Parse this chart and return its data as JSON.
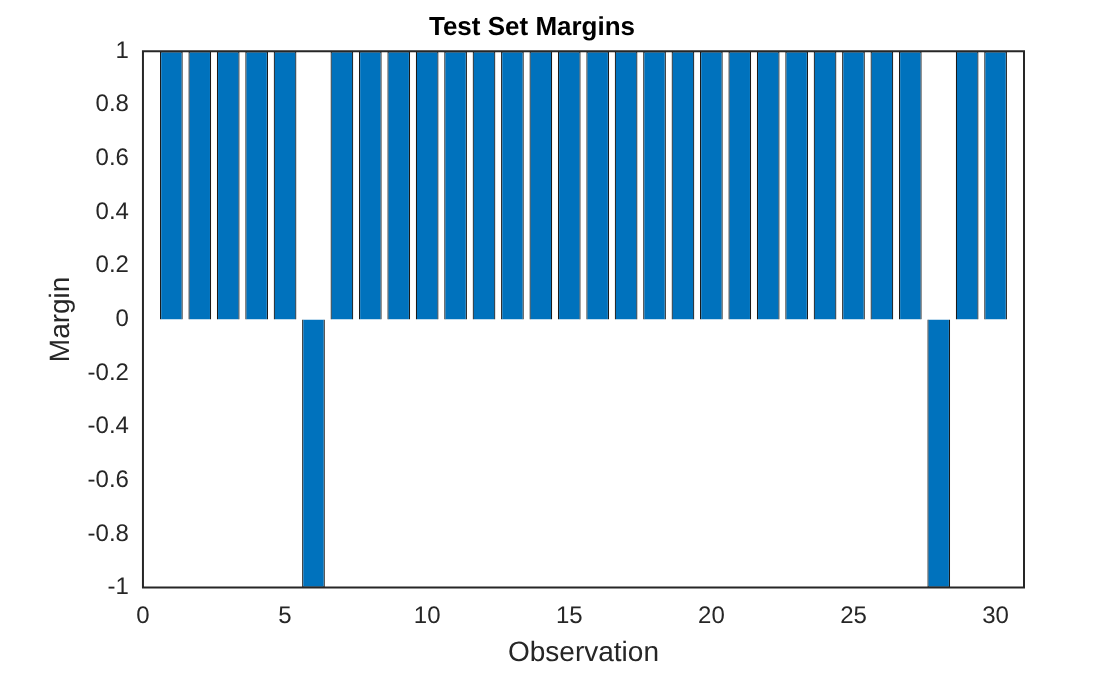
{
  "chart_data": {
    "type": "bar",
    "title": "Test Set Margins",
    "xlabel": "Observation",
    "ylabel": "Margin",
    "x": [
      1,
      2,
      3,
      4,
      5,
      6,
      7,
      8,
      9,
      10,
      11,
      12,
      13,
      14,
      15,
      16,
      17,
      18,
      19,
      20,
      21,
      22,
      23,
      24,
      25,
      26,
      27,
      28,
      29,
      30
    ],
    "values": [
      1,
      1,
      1,
      1,
      1,
      -1,
      1,
      1,
      1,
      1,
      1,
      1,
      1,
      1,
      1,
      1,
      1,
      1,
      1,
      1,
      1,
      1,
      1,
      1,
      1,
      1,
      1,
      -1,
      1,
      1
    ],
    "color": "#0072bd",
    "xlim": [
      0,
      31
    ],
    "xticks": [
      0,
      5,
      10,
      15,
      20,
      25,
      30
    ],
    "ylim": [
      -1,
      1
    ],
    "yticks": [
      -1,
      -0.8,
      -0.6,
      -0.4,
      -0.2,
      0,
      0.2,
      0.4,
      0.6,
      0.8,
      1
    ],
    "grid": false,
    "legend": false
  }
}
